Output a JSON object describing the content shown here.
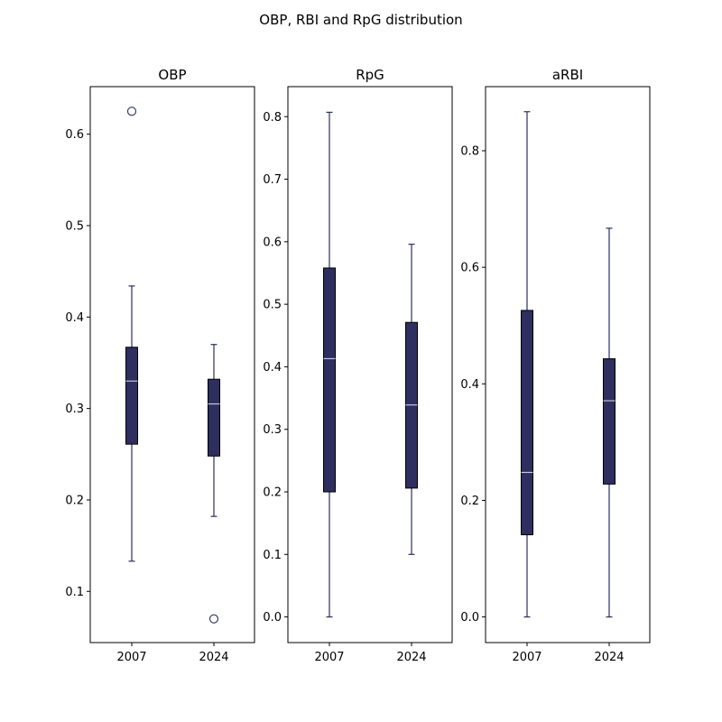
{
  "chart_data": {
    "type": "box",
    "title": "OBP, RBI and RpG distribution",
    "colors": {
      "box_fill": "#2e2e5f",
      "box_edge": "#000000",
      "whisker": "#2e2e5f",
      "median": "#c0c8e0",
      "flier": "#2e2e5f"
    },
    "panels": [
      {
        "title": "OBP",
        "ylim": [
          0.044,
          0.652
        ],
        "yticks": [
          0.1,
          0.2,
          0.3,
          0.4,
          0.5,
          0.6
        ],
        "ytick_labels": [
          "0.1",
          "0.2",
          "0.3",
          "0.4",
          "0.5",
          "0.6"
        ],
        "categories": [
          "2007",
          "2024"
        ],
        "boxes": [
          {
            "category": "2007",
            "whislo": 0.133,
            "q1": 0.261,
            "med": 0.33,
            "q3": 0.367,
            "whishi": 0.434,
            "fliers": [
              0.625
            ]
          },
          {
            "category": "2024",
            "whislo": 0.182,
            "q1": 0.248,
            "med": 0.305,
            "q3": 0.332,
            "whishi": 0.37,
            "fliers": [
              0.07
            ]
          }
        ]
      },
      {
        "title": "RpG",
        "ylim": [
          -0.041,
          0.848
        ],
        "yticks": [
          0.0,
          0.1,
          0.2,
          0.3,
          0.4,
          0.5,
          0.6,
          0.7,
          0.8
        ],
        "ytick_labels": [
          "0.0",
          "0.1",
          "0.2",
          "0.3",
          "0.4",
          "0.5",
          "0.6",
          "0.7",
          "0.8"
        ],
        "categories": [
          "2007",
          "2024"
        ],
        "boxes": [
          {
            "category": "2007",
            "whislo": 0.0,
            "q1": 0.2,
            "med": 0.413,
            "q3": 0.558,
            "whishi": 0.807,
            "fliers": []
          },
          {
            "category": "2024",
            "whislo": 0.1,
            "q1": 0.206,
            "med": 0.339,
            "q3": 0.471,
            "whishi": 0.596,
            "fliers": []
          }
        ]
      },
      {
        "title": "aRBI",
        "ylim": [
          -0.044,
          0.91
        ],
        "yticks": [
          0.0,
          0.2,
          0.4,
          0.6,
          0.8
        ],
        "ytick_labels": [
          "0.0",
          "0.2",
          "0.4",
          "0.6",
          "0.8"
        ],
        "categories": [
          "2007",
          "2024"
        ],
        "boxes": [
          {
            "category": "2007",
            "whislo": 0.0,
            "q1": 0.141,
            "med": 0.248,
            "q3": 0.526,
            "whishi": 0.867,
            "fliers": []
          },
          {
            "category": "2024",
            "whislo": 0.0,
            "q1": 0.228,
            "med": 0.371,
            "q3": 0.443,
            "whishi": 0.667,
            "fliers": []
          }
        ]
      }
    ]
  }
}
